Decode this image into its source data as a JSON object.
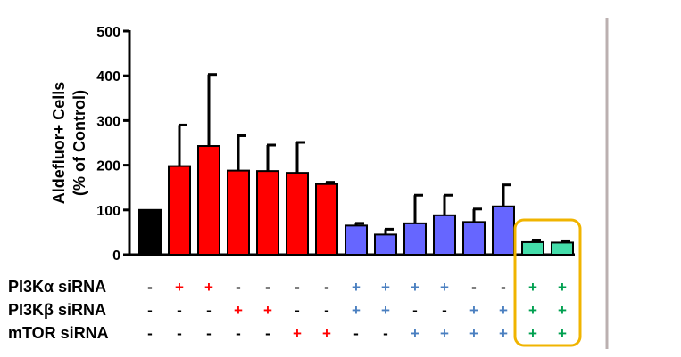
{
  "chart_data": {
    "type": "bar",
    "title": "",
    "xlabel": "",
    "ylabel_lines": [
      "Aldefluor+ Cells",
      "(% of Control)"
    ],
    "ylim": [
      0,
      500
    ],
    "yticks": [
      0,
      100,
      200,
      300,
      400,
      500
    ],
    "series": [
      {
        "name": "Aldefluor+ Cells (% of Control)",
        "values": [
          100,
          198,
          243,
          188,
          187,
          183,
          158,
          65,
          45,
          70,
          88,
          73,
          108,
          28,
          27
        ],
        "errors": [
          0,
          92,
          160,
          78,
          58,
          68,
          4,
          5,
          12,
          63,
          45,
          29,
          48,
          3,
          2
        ],
        "colors": [
          "#000000",
          "#ff0000",
          "#ff0000",
          "#ff0000",
          "#ff0000",
          "#ff0000",
          "#ff0000",
          "#6666ff",
          "#6666ff",
          "#6666ff",
          "#6666ff",
          "#6666ff",
          "#6666ff",
          "#44ddaa",
          "#44ddaa"
        ]
      }
    ],
    "treatment_rows": [
      {
        "label": "PI3Kα siRNA",
        "signs": [
          "-",
          "+",
          "+",
          "-",
          "-",
          "-",
          "-",
          "+",
          "+",
          "+",
          "+",
          "-",
          "-",
          "+",
          "+"
        ]
      },
      {
        "label": "PI3Kβ siRNA",
        "signs": [
          "-",
          "-",
          "-",
          "+",
          "+",
          "-",
          "-",
          "+",
          "+",
          "-",
          "-",
          "+",
          "+",
          "+",
          "+"
        ]
      },
      {
        "label": "mTOR siRNA",
        "signs": [
          "-",
          "-",
          "-",
          "-",
          "-",
          "+",
          "+",
          "-",
          "-",
          "+",
          "+",
          "+",
          "+",
          "+",
          "+"
        ]
      }
    ],
    "highlight": {
      "bars": [
        13,
        14
      ],
      "color": "#f0b400"
    },
    "sign_colors": {
      "none": "#000000",
      "red": "#ff0000",
      "blue": "#4a7fc0",
      "green": "#00a050"
    },
    "divider_color": "#bbb0b0"
  }
}
